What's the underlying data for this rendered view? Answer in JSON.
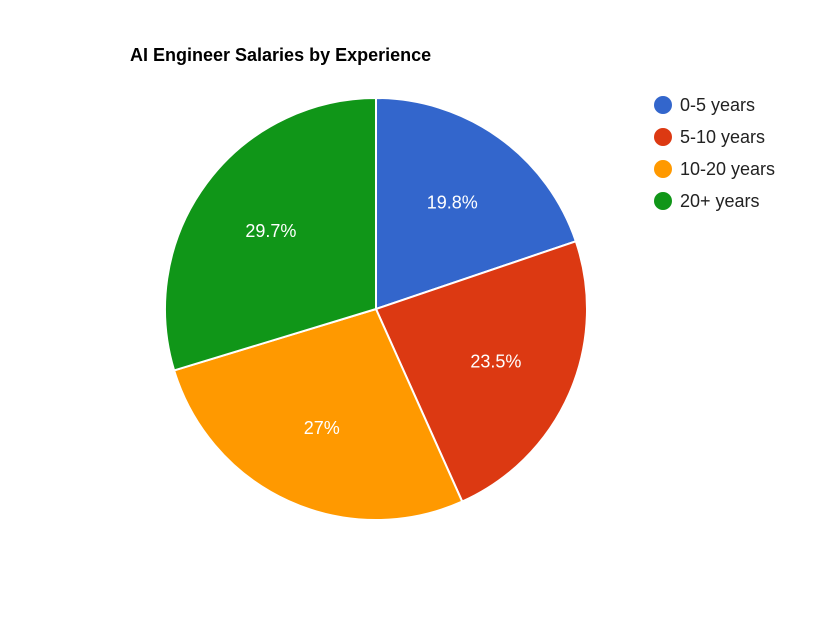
{
  "chart_data": {
    "type": "pie",
    "title": "AI Engineer Salaries by Experience",
    "slices": [
      {
        "label": "0-5 years",
        "value": 19.8,
        "display": "19.8%",
        "color": "#3366cc"
      },
      {
        "label": "5-10 years",
        "value": 23.5,
        "display": "23.5%",
        "color": "#dc3912"
      },
      {
        "label": "10-20 years",
        "value": 27.0,
        "display": "27%",
        "color": "#ff9900"
      },
      {
        "label": "20+ years",
        "value": 29.7,
        "display": "29.7%",
        "color": "#109618"
      }
    ],
    "legend_position": "right",
    "start_angle": "top, clockwise"
  }
}
